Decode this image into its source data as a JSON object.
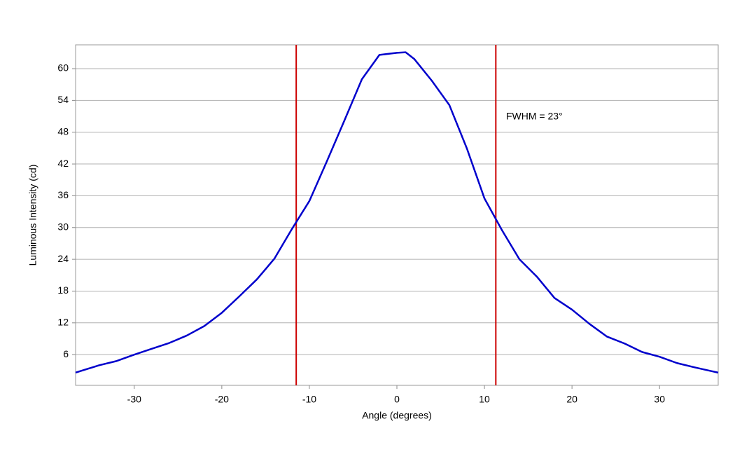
{
  "chart_data": {
    "type": "line",
    "xlabel": "Angle (degrees)",
    "ylabel": "Luminous Intensity (cd)",
    "annotation": "FWHM = 23°",
    "x": [
      -36.7,
      -34,
      -32,
      -30,
      -28,
      -26,
      -24,
      -22,
      -20,
      -18,
      -16,
      -14,
      -12,
      -10,
      -8,
      -6,
      -4,
      -2,
      0,
      1,
      2,
      4,
      6,
      8,
      10,
      12,
      14,
      16,
      18,
      20,
      22,
      24,
      26,
      28,
      30,
      32,
      34,
      36.7
    ],
    "series": [
      {
        "color": "#0000cc",
        "values": [
          2.6,
          4.0,
          4.8,
          6.0,
          7.1,
          8.2,
          9.6,
          11.4,
          13.9,
          17.0,
          20.2,
          24.1,
          29.7,
          35.0,
          42.5,
          50.2,
          58.0,
          62.6,
          63.0,
          63.1,
          61.8,
          57.7,
          53.1,
          44.9,
          35.5,
          29.5,
          24.0,
          20.7,
          16.7,
          14.5,
          11.8,
          9.4,
          8.1,
          6.5,
          5.6,
          4.4,
          3.6,
          2.6
        ]
      }
    ],
    "vlines": [
      -11.5,
      11.3
    ],
    "vline_color": "#cc0000",
    "xlim": [
      -36.7,
      36.7
    ],
    "ylim": [
      0.2,
      64.5
    ],
    "xticks": [
      -30,
      -20,
      -10,
      0,
      10,
      20,
      30
    ],
    "yticks": [
      6,
      12,
      18,
      24,
      30,
      36,
      42,
      48,
      54,
      60
    ],
    "grid": true
  }
}
